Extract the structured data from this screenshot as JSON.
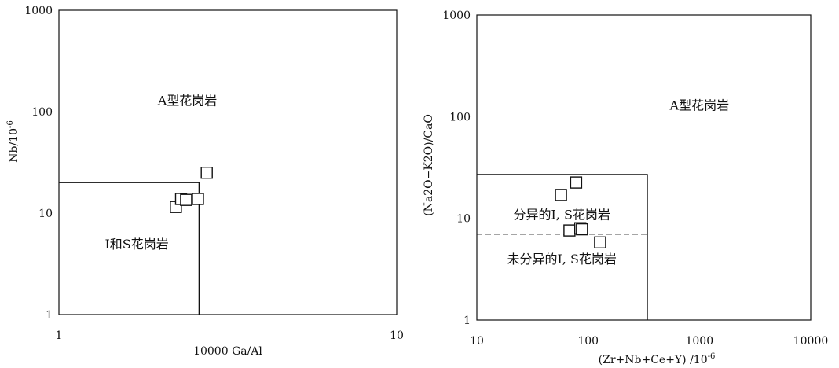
{
  "chart_data": [
    {
      "type": "scatter",
      "xlabel": "10000 Ga/Al",
      "ylabel": "Nb/10",
      "ylabel_sup": "-6",
      "xscale": "log",
      "yscale": "log",
      "xlim": [
        1,
        10
      ],
      "ylim": [
        1,
        1000
      ],
      "x_tick_labels": [
        "1",
        "10"
      ],
      "y_tick_labels": [
        "1",
        "10",
        "100",
        "1000"
      ],
      "grid": false,
      "regions": [
        {
          "label": "A型花岗岩",
          "x": 2.4,
          "y": 130
        },
        {
          "label": "I和S花岗岩",
          "x": 1.7,
          "y": 5
        }
      ],
      "boundaries": [
        {
          "style": "solid",
          "points": [
            [
              1,
              20
            ],
            [
              2.6,
              20
            ],
            [
              2.6,
              1
            ]
          ]
        }
      ],
      "points": [
        {
          "x": 2.22,
          "y": 11.5
        },
        {
          "x": 2.3,
          "y": 13.8
        },
        {
          "x": 2.38,
          "y": 13.5
        },
        {
          "x": 2.58,
          "y": 13.8
        },
        {
          "x": 2.74,
          "y": 25
        }
      ]
    },
    {
      "type": "scatter",
      "xlabel": "(Zr+Nb+Ce+Y) /10",
      "xlabel_sup": "-6",
      "ylabel": "(Na2O+K2O)/CaO",
      "xscale": "log",
      "yscale": "log",
      "xlim": [
        10,
        10000
      ],
      "ylim": [
        1,
        1000
      ],
      "x_tick_labels": [
        "10",
        "100",
        "1000",
        "10000"
      ],
      "y_tick_labels": [
        "1",
        "10",
        "100",
        "1000"
      ],
      "grid": false,
      "regions": [
        {
          "label": "A型花岗岩",
          "x": 1000,
          "y": 130
        },
        {
          "label": "分异的I, S花岗岩",
          "x": 58,
          "y": 11
        },
        {
          "label": "未分异的I, S花岗岩",
          "x": 58,
          "y": 4
        }
      ],
      "boundaries": [
        {
          "style": "solid",
          "points": [
            [
              10,
              27
            ],
            [
              340,
              27
            ],
            [
              340,
              1
            ]
          ]
        },
        {
          "style": "dashed",
          "points": [
            [
              10,
              7
            ],
            [
              340,
              7
            ]
          ]
        }
      ],
      "points": [
        {
          "x": 57,
          "y": 17
        },
        {
          "x": 78,
          "y": 22.5
        },
        {
          "x": 68,
          "y": 7.6
        },
        {
          "x": 85,
          "y": 8.0
        },
        {
          "x": 88,
          "y": 7.8
        },
        {
          "x": 128,
          "y": 5.8
        }
      ]
    }
  ]
}
